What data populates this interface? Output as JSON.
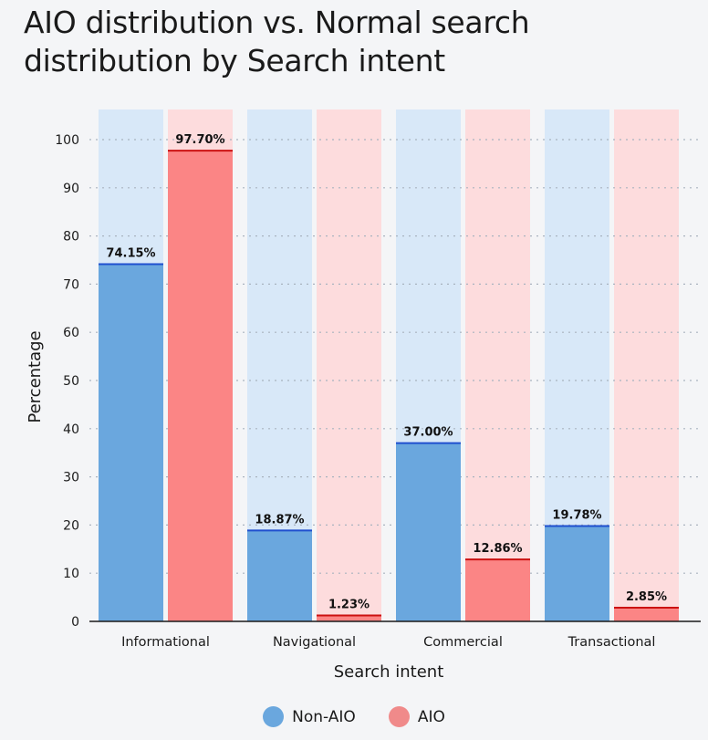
{
  "chart_data": {
    "type": "bar",
    "title": "AIO distribution vs. Normal search distribution by Search intent",
    "xlabel": "Search intent",
    "ylabel": "Percentage",
    "ylim": [
      0,
      100
    ],
    "yticks": [
      0,
      10,
      20,
      30,
      40,
      50,
      60,
      70,
      80,
      90,
      100
    ],
    "categories": [
      "Informational",
      "Navigational",
      "Commercial",
      "Transactional"
    ],
    "series": [
      {
        "name": "Non-AIO",
        "values": [
          74.15,
          18.87,
          37.0,
          19.78
        ],
        "labels": [
          "74.15%",
          "18.87%",
          "37.00%",
          "19.78%"
        ],
        "color": "#6aa7de",
        "bg_color": "#d8e8f8",
        "line_color": "#1f4fcf"
      },
      {
        "name": "AIO",
        "values": [
          97.7,
          1.23,
          12.86,
          2.85
        ],
        "labels": [
          "97.70%",
          "1.23%",
          "12.86%",
          "2.85%"
        ],
        "color": "#fb8585",
        "bg_color": "#fddcdd",
        "line_color": "#cc1111"
      }
    ],
    "grid": true,
    "legend_position": "bottom"
  }
}
